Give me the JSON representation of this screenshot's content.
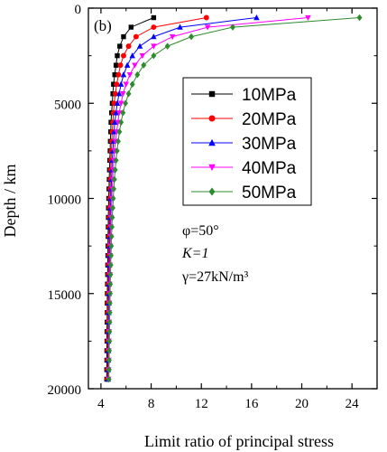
{
  "chart_data": {
    "type": "line",
    "panel_label": "(b)",
    "xlabel": "Limit ratio of principal stress",
    "ylabel": "Depth / km",
    "xlim": [
      3,
      26
    ],
    "ylim": [
      0,
      20000
    ],
    "y_inverted": true,
    "x_ticks": [
      4,
      8,
      12,
      16,
      20,
      24
    ],
    "y_ticks": [
      0,
      5000,
      10000,
      15000,
      20000
    ],
    "grid": false,
    "legend_position": "upper-right inside",
    "annotations": [
      "φ=50°",
      "K=1",
      "γ=27kN/m³"
    ],
    "depths": [
      500,
      1000,
      1500,
      2000,
      2500,
      3000,
      3500,
      4000,
      4500,
      5000,
      5500,
      6000,
      6500,
      7000,
      7500,
      8000,
      8500,
      9000,
      9500,
      10000,
      10500,
      11000,
      11500,
      12000,
      12500,
      13000,
      13500,
      14000,
      14500,
      15000,
      15500,
      16000,
      16500,
      17000,
      17500,
      18000,
      18500,
      19000,
      19500
    ],
    "series": [
      {
        "name": "10MPa",
        "color": "#000000",
        "marker": "square",
        "values": [
          8.2,
          6.4,
          5.8,
          5.5,
          5.3,
          5.2,
          5.1,
          5.0,
          4.95,
          4.9,
          4.85,
          4.8,
          4.78,
          4.75,
          4.73,
          4.7,
          4.68,
          4.66,
          4.64,
          4.62,
          4.6,
          4.59,
          4.58,
          4.57,
          4.56,
          4.55,
          4.54,
          4.53,
          4.52,
          4.51,
          4.5,
          4.5,
          4.49,
          4.48,
          4.48,
          4.47,
          4.47,
          4.46,
          4.46
        ]
      },
      {
        "name": "20MPa",
        "color": "#ff0000",
        "marker": "circle",
        "values": [
          12.4,
          8.2,
          6.8,
          6.2,
          5.8,
          5.55,
          5.4,
          5.25,
          5.15,
          5.05,
          5.0,
          4.95,
          4.9,
          4.86,
          4.83,
          4.8,
          4.77,
          4.75,
          4.73,
          4.71,
          4.69,
          4.67,
          4.66,
          4.64,
          4.63,
          4.62,
          4.61,
          4.6,
          4.59,
          4.58,
          4.57,
          4.56,
          4.56,
          4.55,
          4.54,
          4.54,
          4.53,
          4.53,
          4.52
        ]
      },
      {
        "name": "30MPa",
        "color": "#0000ff",
        "marker": "triangle-up",
        "values": [
          16.4,
          10.3,
          8.2,
          7.1,
          6.5,
          6.1,
          5.8,
          5.6,
          5.45,
          5.3,
          5.2,
          5.1,
          5.05,
          5.0,
          4.95,
          4.9,
          4.87,
          4.84,
          4.81,
          4.78,
          4.76,
          4.74,
          4.72,
          4.71,
          4.69,
          4.68,
          4.67,
          4.66,
          4.65,
          4.64,
          4.63,
          4.62,
          4.61,
          4.6,
          4.6,
          4.59,
          4.58,
          4.58,
          4.57
        ]
      },
      {
        "name": "40MPa",
        "color": "#ff00ff",
        "marker": "triangle-down",
        "values": [
          20.5,
          12.5,
          9.7,
          8.2,
          7.3,
          6.7,
          6.3,
          6.0,
          5.75,
          5.6,
          5.45,
          5.35,
          5.25,
          5.15,
          5.08,
          5.02,
          4.97,
          4.93,
          4.89,
          4.86,
          4.83,
          4.8,
          4.78,
          4.76,
          4.74,
          4.73,
          4.71,
          4.7,
          4.69,
          4.68,
          4.67,
          4.66,
          4.65,
          4.64,
          4.63,
          4.62,
          4.62,
          4.61,
          4.6
        ]
      },
      {
        "name": "50MPa",
        "color": "#2e8b2e",
        "marker": "diamond",
        "values": [
          24.6,
          14.5,
          11.2,
          9.3,
          8.2,
          7.4,
          6.9,
          6.5,
          6.2,
          5.95,
          5.75,
          5.6,
          5.47,
          5.37,
          5.28,
          5.2,
          5.13,
          5.07,
          5.02,
          4.98,
          4.94,
          4.9,
          4.87,
          4.84,
          4.82,
          4.8,
          4.78,
          4.76,
          4.74,
          4.73,
          4.71,
          4.7,
          4.69,
          4.68,
          4.67,
          4.66,
          4.65,
          4.64,
          4.63
        ]
      }
    ]
  }
}
